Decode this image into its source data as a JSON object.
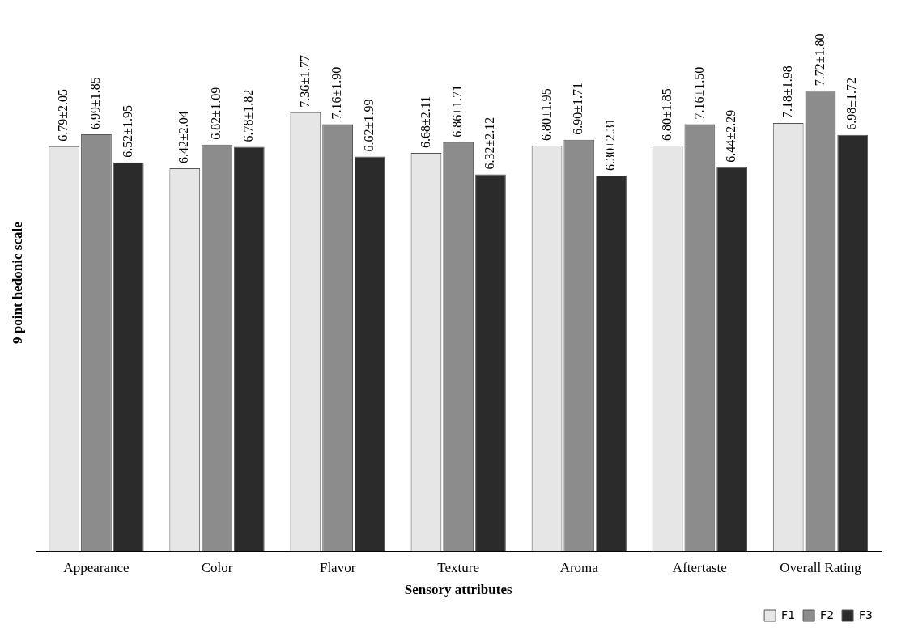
{
  "chart_data": {
    "type": "bar",
    "xlabel": "Sensory attributes",
    "ylabel": "9 point hedonic scale",
    "categories": [
      "Appearance",
      "Color",
      "Flavor",
      "Texture",
      "Aroma",
      "Aftertaste",
      "Overall Rating"
    ],
    "series": [
      {
        "name": "F1",
        "color": "#e6e6e6",
        "values": [
          6.79,
          6.42,
          7.36,
          6.68,
          6.8,
          6.8,
          7.18
        ],
        "value_labels": [
          "6.79±2.05",
          "6.42±2.04",
          "7.36±1.77",
          "6.68±2.11",
          "6.80±1.95",
          "6.80±1.85",
          "7.18±1.98"
        ]
      },
      {
        "name": "F2",
        "color": "#8c8c8c",
        "values": [
          6.99,
          6.82,
          7.16,
          6.86,
          6.9,
          7.16,
          7.72
        ],
        "value_labels": [
          "6.99±1.85",
          "6.82±1.09",
          "7.16±1.90",
          "6.86±1.71",
          "6.90±1.71",
          "7.16±1.50",
          "7.72±1.80"
        ]
      },
      {
        "name": "F3",
        "color": "#2b2b2b",
        "values": [
          6.52,
          6.78,
          6.62,
          6.32,
          6.3,
          6.44,
          6.98
        ],
        "value_labels": [
          "6.52±1.95",
          "6.78±1.82",
          "6.62±1.99",
          "6.32±2.12",
          "6.30±2.31",
          "6.44±2.29",
          "6.98±1.72"
        ]
      }
    ],
    "grid": false,
    "legend": "bottom right",
    "tick_labels": "x"
  }
}
